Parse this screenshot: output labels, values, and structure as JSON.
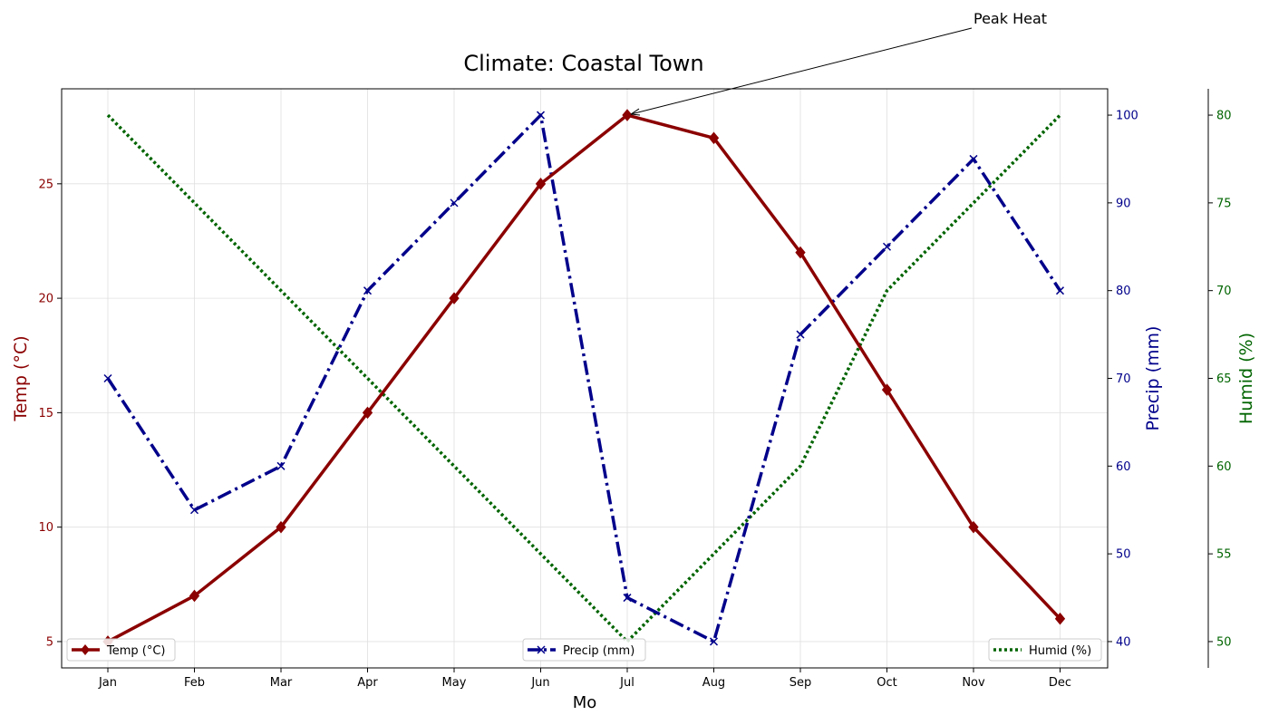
{
  "chart_data": {
    "type": "line",
    "title": "Climate: Coastal Town",
    "xlabel": "Mo",
    "categories": [
      "Jan",
      "Feb",
      "Mar",
      "Apr",
      "May",
      "Jun",
      "Jul",
      "Aug",
      "Sep",
      "Oct",
      "Nov",
      "Dec"
    ],
    "grid": true,
    "axes": [
      {
        "id": "temp",
        "label": "Temp (°C)",
        "side": "left",
        "color": "#8b0000",
        "ylim": [
          3.85,
          29.15
        ],
        "ticks": [
          5,
          10,
          15,
          20,
          25
        ]
      },
      {
        "id": "precip",
        "label": "Precip (mm)",
        "side": "right",
        "color": "#00008b",
        "ylim": [
          37,
          103
        ],
        "ticks": [
          40,
          50,
          60,
          70,
          80,
          90,
          100
        ]
      },
      {
        "id": "humid",
        "label": "Humid (%)",
        "side": "right-outer",
        "color": "#006400",
        "ylim": [
          48.5,
          81.5
        ],
        "ticks": [
          50,
          55,
          60,
          65,
          70,
          75,
          80
        ]
      }
    ],
    "series": [
      {
        "name": "Temp (°C)",
        "axis": "temp",
        "color": "#8b0000",
        "line_style": "solid",
        "marker": "diamond",
        "legend_position": "lower-left",
        "values": [
          5,
          7,
          10,
          15,
          20,
          25,
          28,
          27,
          22,
          16,
          10,
          6
        ]
      },
      {
        "name": "Precip (mm)",
        "axis": "precip",
        "color": "#00008b",
        "line_style": "dash-dot",
        "marker": "x",
        "legend_position": "lower-center",
        "values": [
          70,
          55,
          60,
          80,
          90,
          100,
          45,
          40,
          75,
          85,
          95,
          80
        ]
      },
      {
        "name": "Humid (%)",
        "axis": "humid",
        "color": "#006400",
        "line_style": "dotted",
        "marker": "none",
        "legend_position": "lower-right",
        "values": [
          80,
          75,
          70,
          65,
          60,
          55,
          50,
          55,
          60,
          70,
          75,
          80
        ]
      }
    ],
    "annotations": [
      {
        "text": "Peak Heat",
        "series": "Temp (°C)",
        "category": "Jul",
        "value": 28
      }
    ]
  }
}
